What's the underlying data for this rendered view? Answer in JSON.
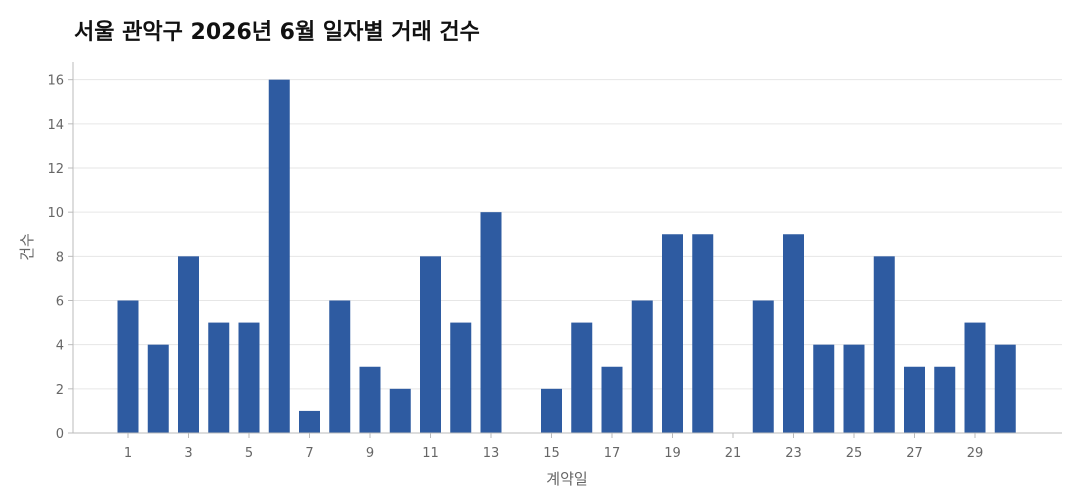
{
  "chart_data": {
    "type": "bar",
    "title": "서울 관악구 2026년 6월 일자별 거래 건수",
    "xlabel": "계약일",
    "ylabel": "건수",
    "x": [
      1,
      2,
      3,
      4,
      5,
      6,
      7,
      8,
      9,
      10,
      11,
      12,
      13,
      14,
      15,
      16,
      17,
      18,
      19,
      20,
      21,
      22,
      23,
      24,
      25,
      26,
      27,
      28,
      29,
      30
    ],
    "values": [
      6,
      4,
      8,
      5,
      5,
      16,
      1,
      6,
      3,
      2,
      8,
      5,
      10,
      0,
      2,
      5,
      3,
      6,
      9,
      9,
      0,
      6,
      9,
      4,
      4,
      8,
      3,
      3,
      5,
      4
    ],
    "xticks": [
      1,
      3,
      5,
      7,
      9,
      11,
      13,
      15,
      17,
      19,
      21,
      23,
      25,
      27,
      29
    ],
    "yticks": [
      0,
      2,
      4,
      6,
      8,
      10,
      12,
      14,
      16
    ],
    "ylim": [
      0,
      16.8
    ],
    "grid": "horizontal",
    "bar_color": "#2E5BA1"
  }
}
